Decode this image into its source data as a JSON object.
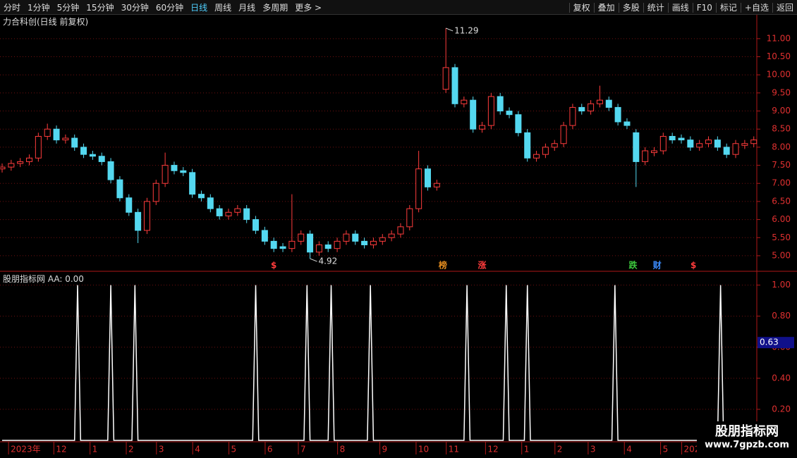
{
  "toolbar": {
    "left": [
      "分时",
      "1分钟",
      "5分钟",
      "15分钟",
      "30分钟",
      "60分钟",
      "日线",
      "周线",
      "月线",
      "多周期",
      "更多 >"
    ],
    "active": "日线",
    "right": [
      "复权",
      "叠加",
      "多股",
      "统计",
      "画线",
      "F10",
      "标记",
      "+自选",
      "返回"
    ]
  },
  "watermark": {
    "title": "股朋指标网",
    "url": "www.7gpzb.com"
  },
  "chart_data": [
    {
      "type": "candlestick",
      "title": "力合科创(日线 前复权)",
      "up_color": "#ff3c3c",
      "down_color": "#54d8f0",
      "grid": true,
      "xlim": [
        0,
        250
      ],
      "ylim": [
        4.57,
        11.64
      ],
      "yticks": [
        {
          "value": 5,
          "label": "5.00"
        },
        {
          "value": 5.5,
          "label": "5.50"
        },
        {
          "value": 6,
          "label": "6.00"
        },
        {
          "value": 6.5,
          "label": "6.50"
        },
        {
          "value": 7,
          "label": "7.00"
        },
        {
          "value": 7.5,
          "label": "7.50"
        },
        {
          "value": 8,
          "label": "8.00"
        },
        {
          "value": 8.5,
          "label": "8.50"
        },
        {
          "value": 9,
          "label": "9.00"
        },
        {
          "value": 9.5,
          "label": "9.50"
        },
        {
          "value": 10,
          "label": "10.00"
        },
        {
          "value": 10.5,
          "label": "10.50"
        },
        {
          "value": 11,
          "label": "11.00"
        }
      ],
      "x": [
        0,
        3,
        6,
        9,
        12,
        15,
        18,
        21,
        24,
        27,
        30,
        33,
        36,
        39,
        42,
        45,
        48,
        51,
        54,
        57,
        60,
        63,
        66,
        69,
        72,
        75,
        78,
        81,
        84,
        87,
        90,
        93,
        96,
        99,
        102,
        105,
        108,
        111,
        114,
        117,
        120,
        123,
        126,
        129,
        132,
        135,
        138,
        141,
        144,
        147,
        150,
        153,
        156,
        159,
        162,
        165,
        168,
        171,
        174,
        177,
        180,
        183,
        186,
        189,
        192,
        195,
        198,
        201,
        204,
        207,
        210,
        213,
        216,
        219,
        222,
        225,
        228,
        231,
        234,
        237,
        240,
        243,
        246,
        249
      ],
      "open": [
        7.4,
        7.45,
        7.55,
        7.6,
        7.7,
        8.3,
        8.5,
        8.2,
        8.25,
        8.0,
        7.8,
        7.75,
        7.6,
        7.1,
        6.6,
        6.2,
        5.7,
        6.5,
        7.0,
        7.5,
        7.35,
        7.3,
        6.7,
        6.6,
        6.3,
        6.1,
        6.2,
        6.3,
        6.0,
        5.7,
        5.4,
        5.25,
        5.2,
        5.4,
        5.6,
        5.1,
        5.3,
        5.2,
        5.4,
        5.6,
        5.4,
        5.3,
        5.4,
        5.5,
        5.6,
        5.8,
        6.3,
        7.4,
        6.9,
        9.6,
        10.2,
        9.2,
        9.3,
        8.5,
        8.6,
        9.4,
        9.0,
        8.9,
        8.4,
        7.7,
        7.8,
        8.0,
        8.1,
        8.6,
        9.1,
        9.0,
        9.2,
        9.3,
        9.1,
        8.7,
        8.4,
        7.6,
        7.85,
        7.9,
        8.3,
        8.25,
        8.2,
        8.0,
        8.1,
        8.2,
        8.0,
        7.8,
        8.05,
        8.1
      ],
      "high": [
        7.55,
        7.65,
        7.7,
        7.8,
        8.4,
        8.65,
        8.6,
        8.35,
        8.35,
        8.1,
        7.9,
        7.85,
        7.7,
        7.2,
        6.7,
        6.3,
        6.6,
        7.1,
        7.85,
        7.6,
        7.45,
        7.4,
        6.8,
        6.7,
        6.4,
        6.3,
        6.4,
        6.4,
        6.1,
        5.8,
        5.5,
        5.35,
        6.7,
        5.7,
        5.7,
        5.4,
        5.4,
        5.5,
        5.7,
        5.7,
        5.5,
        5.5,
        5.6,
        5.7,
        5.9,
        6.4,
        7.9,
        7.5,
        7.1,
        11.29,
        10.3,
        9.4,
        9.4,
        8.7,
        9.5,
        9.5,
        9.1,
        9.0,
        8.5,
        7.9,
        8.1,
        8.2,
        8.7,
        9.2,
        9.2,
        9.3,
        9.7,
        9.4,
        9.2,
        8.8,
        8.5,
        8.0,
        8.0,
        8.4,
        8.4,
        8.35,
        8.3,
        8.2,
        8.3,
        8.3,
        8.1,
        8.2,
        8.2,
        8.3
      ],
      "low": [
        7.3,
        7.35,
        7.45,
        7.5,
        7.6,
        8.2,
        8.1,
        8.1,
        7.9,
        7.7,
        7.65,
        7.5,
        7.0,
        6.5,
        6.1,
        5.35,
        5.6,
        6.4,
        6.9,
        7.25,
        7.2,
        6.6,
        6.5,
        6.2,
        6.0,
        6.0,
        6.1,
        5.9,
        5.6,
        5.3,
        5.1,
        5.1,
        5.1,
        5.3,
        4.92,
        5.0,
        5.1,
        5.1,
        5.3,
        5.3,
        5.2,
        5.2,
        5.3,
        5.4,
        5.5,
        5.7,
        6.2,
        6.8,
        6.8,
        9.5,
        9.1,
        9.1,
        8.4,
        8.4,
        8.5,
        8.9,
        8.8,
        8.3,
        7.6,
        7.6,
        7.7,
        7.9,
        8.0,
        8.5,
        8.9,
        8.9,
        9.1,
        9.0,
        8.6,
        8.5,
        6.9,
        7.5,
        7.75,
        7.8,
        8.1,
        8.1,
        7.9,
        7.9,
        8.0,
        7.9,
        7.7,
        7.7,
        7.95,
        8.0
      ],
      "close": [
        7.45,
        7.55,
        7.6,
        7.7,
        8.3,
        8.5,
        8.2,
        8.25,
        8.0,
        7.8,
        7.75,
        7.6,
        7.1,
        6.6,
        6.2,
        5.7,
        6.5,
        7.0,
        7.5,
        7.35,
        7.3,
        6.7,
        6.6,
        6.3,
        6.1,
        6.2,
        6.3,
        6.0,
        5.7,
        5.4,
        5.2,
        5.2,
        5.4,
        5.6,
        5.1,
        5.3,
        5.2,
        5.4,
        5.6,
        5.4,
        5.3,
        5.4,
        5.5,
        5.6,
        5.8,
        6.3,
        7.4,
        6.9,
        7.0,
        10.2,
        9.2,
        9.3,
        8.5,
        8.6,
        9.4,
        9.0,
        8.9,
        8.4,
        7.7,
        7.8,
        8.0,
        8.1,
        8.6,
        9.1,
        9.0,
        9.2,
        9.3,
        9.1,
        8.7,
        8.6,
        7.6,
        7.9,
        7.9,
        8.3,
        8.2,
        8.2,
        8.0,
        8.1,
        8.2,
        8.0,
        7.8,
        8.1,
        8.1,
        8.2
      ],
      "extremes": [
        {
          "x": 147,
          "value": 11.29
        },
        {
          "x": 102,
          "value": 4.92
        }
      ],
      "events": [
        {
          "x": 90,
          "label": "$",
          "color": "#ff3c3c"
        },
        {
          "x": 146,
          "label": "榜",
          "color": "#e08a1e"
        },
        {
          "x": 159,
          "label": "涨",
          "color": "#ff3c3c"
        },
        {
          "x": 209,
          "label": "跌",
          "color": "#3cc83c"
        },
        {
          "x": 217,
          "label": "财",
          "color": "#3c8cff"
        },
        {
          "x": 229,
          "label": "$",
          "color": "#ff3c3c"
        }
      ]
    },
    {
      "type": "line",
      "title": "股朋指标网 AA: 0.00",
      "color": "#ffffff",
      "grid": true,
      "cursor_value": 0.63,
      "xlim": [
        0,
        250
      ],
      "ylim": [
        0,
        1.08
      ],
      "yticks": [
        {
          "value": 0.2,
          "label": "0.20"
        },
        {
          "value": 0.4,
          "label": "0.40"
        },
        {
          "value": 0.6,
          "label": "0.60"
        },
        {
          "value": 0.8,
          "label": "0.80"
        },
        {
          "value": 1,
          "label": "1.00"
        }
      ],
      "xticks": [
        {
          "value": 4,
          "label": "2023年"
        },
        {
          "value": 19,
          "label": "12"
        },
        {
          "value": 31,
          "label": "1"
        },
        {
          "value": 43,
          "label": "2"
        },
        {
          "value": 53,
          "label": "3"
        },
        {
          "value": 65,
          "label": "4"
        },
        {
          "value": 77,
          "label": "5"
        },
        {
          "value": 89,
          "label": "6"
        },
        {
          "value": 100,
          "label": "7"
        },
        {
          "value": 113,
          "label": "8"
        },
        {
          "value": 127,
          "label": "9"
        },
        {
          "value": 139,
          "label": "10"
        },
        {
          "value": 149,
          "label": "11"
        },
        {
          "value": 162,
          "label": "12"
        },
        {
          "value": 174,
          "label": "1"
        },
        {
          "value": 185,
          "label": "2"
        },
        {
          "value": 196,
          "label": "3"
        },
        {
          "value": 208,
          "label": "4"
        },
        {
          "value": 220,
          "label": "5"
        },
        {
          "value": 227,
          "label": "202"
        }
      ],
      "x": [
        0,
        24,
        25,
        26,
        35,
        36,
        37,
        43,
        44,
        45,
        83,
        84,
        85,
        100,
        101,
        102,
        108,
        109,
        110,
        121,
        122,
        123,
        153,
        154,
        155,
        166,
        167,
        168,
        173,
        174,
        175,
        202,
        203,
        204,
        237,
        238,
        239,
        250
      ],
      "values": [
        0,
        0,
        1,
        0,
        0,
        1,
        0,
        0,
        1,
        0,
        0,
        1,
        0,
        0,
        1,
        0,
        0,
        1,
        0,
        0,
        1,
        0,
        0,
        1,
        0,
        0,
        1,
        0,
        0,
        1,
        0,
        0,
        1,
        0,
        0,
        1,
        0,
        0
      ]
    }
  ]
}
